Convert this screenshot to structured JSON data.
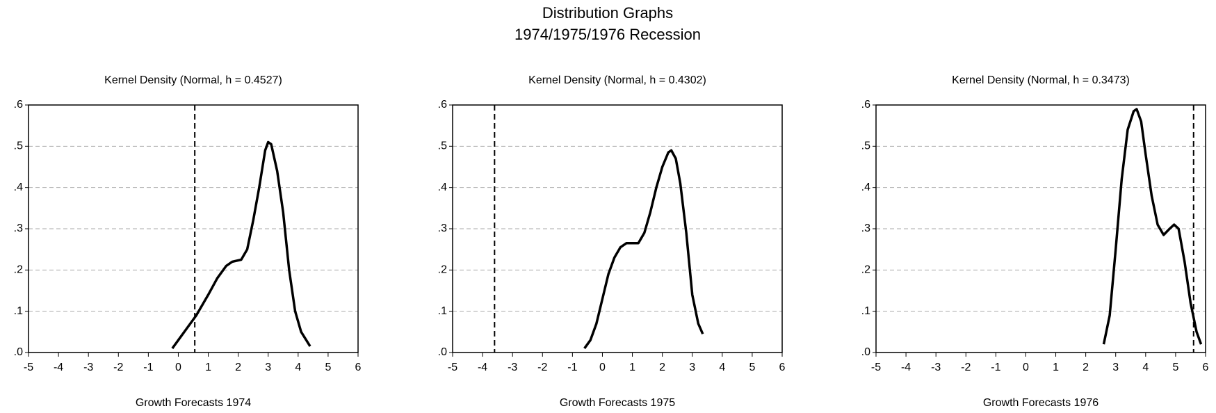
{
  "title": [
    "Distribution Graphs",
    "1974/1975/1976 Recession"
  ],
  "chart_data": [
    {
      "type": "line",
      "title": "Kernel Density (Normal, h =  0.4527)",
      "xlabel": "Growth Forecasts 1974",
      "xlim": [
        -5,
        6
      ],
      "xticks": [
        -5,
        -4,
        -3,
        -2,
        -1,
        0,
        1,
        2,
        3,
        4,
        5,
        6
      ],
      "ylim": [
        0,
        0.6
      ],
      "yticks": [
        {
          "value": 0,
          "label": ".0"
        },
        {
          "value": 0.1,
          "label": ".1"
        },
        {
          "value": 0.2,
          "label": ".2"
        },
        {
          "value": 0.3,
          "label": ".3"
        },
        {
          "value": 0.4,
          "label": ".4"
        },
        {
          "value": 0.5,
          "label": ".5"
        },
        {
          "value": 0.6,
          "label": ".6"
        }
      ],
      "grid": true,
      "vline": 0.55,
      "series": [
        {
          "color": "#000000",
          "x": [
            -0.2,
            0,
            0.3,
            0.6,
            1,
            1.3,
            1.6,
            1.8,
            2.1,
            2.3,
            2.5,
            2.7,
            2.9,
            3.0,
            3.1,
            3.3,
            3.5,
            3.7,
            3.9,
            4.1,
            4.4
          ],
          "values": [
            0.01,
            0.03,
            0.06,
            0.09,
            0.14,
            0.18,
            0.21,
            0.22,
            0.225,
            0.25,
            0.32,
            0.4,
            0.49,
            0.51,
            0.505,
            0.44,
            0.34,
            0.2,
            0.1,
            0.05,
            0.015
          ]
        }
      ]
    },
    {
      "type": "line",
      "title": "Kernel Density (Normal, h =  0.4302)",
      "xlabel": "Growth Forecasts 1975",
      "xlim": [
        -5,
        6
      ],
      "xticks": [
        -5,
        -4,
        -3,
        -2,
        -1,
        0,
        1,
        2,
        3,
        4,
        5,
        6
      ],
      "ylim": [
        0,
        0.6
      ],
      "yticks": [
        {
          "value": 0,
          "label": ".0"
        },
        {
          "value": 0.1,
          "label": ".1"
        },
        {
          "value": 0.2,
          "label": ".2"
        },
        {
          "value": 0.3,
          "label": ".3"
        },
        {
          "value": 0.4,
          "label": ".4"
        },
        {
          "value": 0.5,
          "label": ".5"
        },
        {
          "value": 0.6,
          "label": ".6"
        }
      ],
      "grid": true,
      "vline": -3.6,
      "series": [
        {
          "color": "#000000",
          "x": [
            -0.6,
            -0.4,
            -0.2,
            0,
            0.2,
            0.4,
            0.6,
            0.8,
            1.0,
            1.2,
            1.4,
            1.6,
            1.8,
            2.0,
            2.2,
            2.3,
            2.45,
            2.6,
            2.8,
            3.0,
            3.2,
            3.35
          ],
          "values": [
            0.01,
            0.03,
            0.07,
            0.13,
            0.19,
            0.23,
            0.255,
            0.265,
            0.265,
            0.265,
            0.29,
            0.34,
            0.4,
            0.45,
            0.485,
            0.49,
            0.47,
            0.41,
            0.29,
            0.14,
            0.07,
            0.045
          ]
        }
      ]
    },
    {
      "type": "line",
      "title": "Kernel Density (Normal, h =  0.3473)",
      "xlabel": "Growth Forecasts 1976",
      "xlim": [
        -5,
        6
      ],
      "xticks": [
        -5,
        -4,
        -3,
        -2,
        -1,
        0,
        1,
        2,
        3,
        4,
        5,
        6
      ],
      "ylim": [
        0,
        0.6
      ],
      "yticks": [
        {
          "value": 0,
          "label": ".0"
        },
        {
          "value": 0.1,
          "label": ".1"
        },
        {
          "value": 0.2,
          "label": ".2"
        },
        {
          "value": 0.3,
          "label": ".3"
        },
        {
          "value": 0.4,
          "label": ".4"
        },
        {
          "value": 0.5,
          "label": ".5"
        },
        {
          "value": 0.6,
          "label": ".6"
        }
      ],
      "grid": true,
      "vline": 5.6,
      "series": [
        {
          "color": "#000000",
          "x": [
            2.6,
            2.8,
            3.0,
            3.2,
            3.4,
            3.6,
            3.7,
            3.85,
            4.0,
            4.2,
            4.4,
            4.6,
            4.8,
            4.95,
            5.1,
            5.3,
            5.5,
            5.7,
            5.85
          ],
          "values": [
            0.02,
            0.09,
            0.25,
            0.42,
            0.54,
            0.585,
            0.59,
            0.56,
            0.48,
            0.38,
            0.31,
            0.285,
            0.3,
            0.31,
            0.3,
            0.22,
            0.12,
            0.05,
            0.02
          ]
        }
      ]
    }
  ]
}
